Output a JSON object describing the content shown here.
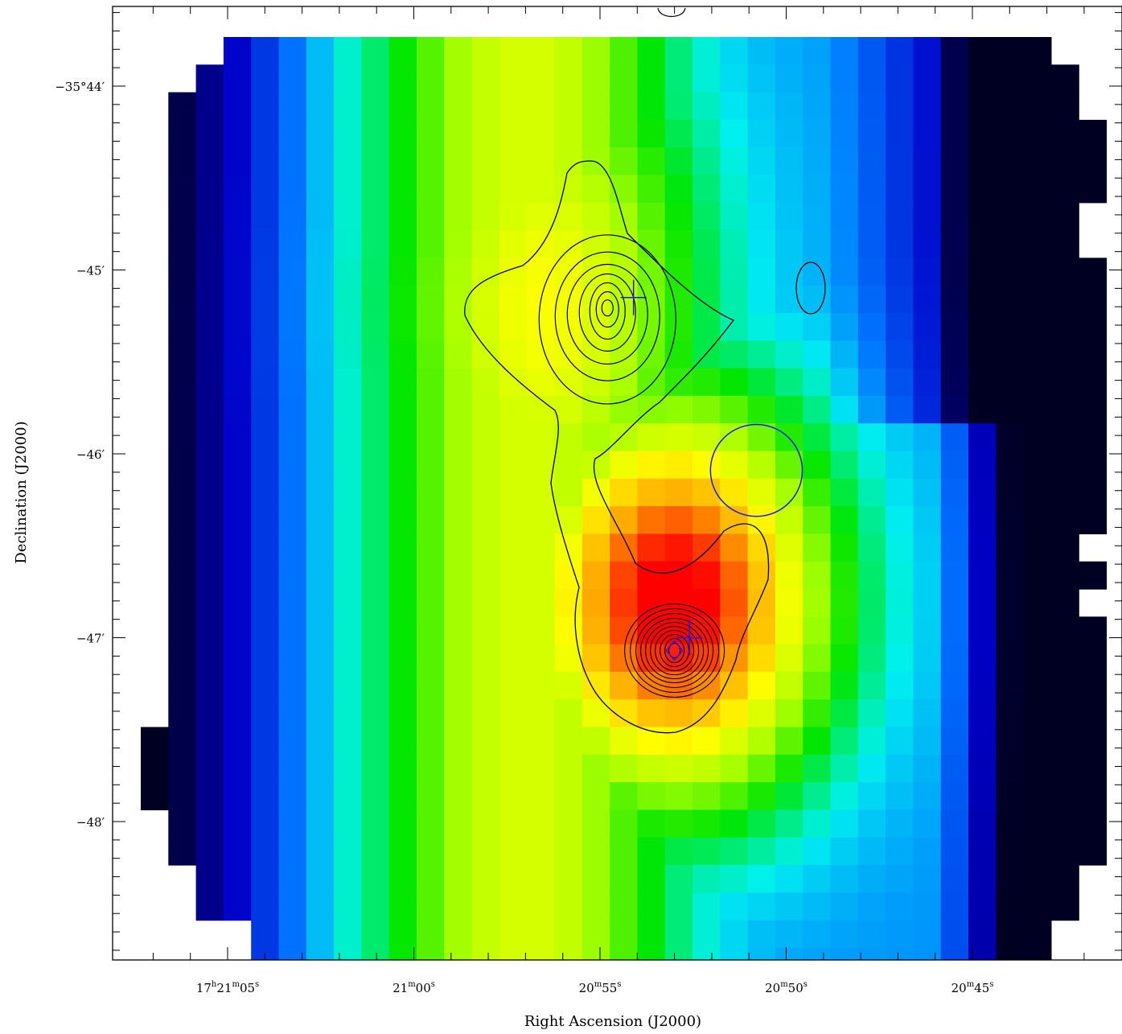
{
  "chart_data": {
    "type": "heatmap",
    "title": "",
    "xlabel": "Right Ascension (J2000)",
    "ylabel": "Declination (J2000)",
    "x_axis": {
      "units": "RA seconds of time (17h20m + s)",
      "range": [
        68.0,
        41.0
      ],
      "direction": "decreasing to the right",
      "ticks": [
        {
          "value": 65,
          "h": "17",
          "m": "21",
          "s": "05",
          "sup_h": "h",
          "sup_m": "m",
          "sup_s": "s"
        },
        {
          "value": 60,
          "h": "",
          "m": "21",
          "s": "00",
          "sup_h": "",
          "sup_m": "m",
          "sup_s": "s"
        },
        {
          "value": 55,
          "h": "",
          "m": "20",
          "s": "55",
          "sup_h": "",
          "sup_m": "m",
          "sup_s": "s"
        },
        {
          "value": 50,
          "h": "",
          "m": "20",
          "s": "50",
          "sup_h": "",
          "sup_m": "m",
          "sup_s": "s"
        },
        {
          "value": 45,
          "h": "",
          "m": "20",
          "s": "45",
          "sup_h": "",
          "sup_m": "m",
          "sup_s": "s"
        }
      ]
    },
    "y_axis": {
      "units": "arcminutes (Dec = -35°+ value)",
      "range": [
        -48.8,
        -43.6
      ],
      "ticks": [
        {
          "value": -44,
          "label": "−35°44′"
        },
        {
          "value": -45,
          "label": "−45′"
        },
        {
          "value": -46,
          "label": "−46′"
        },
        {
          "value": -47,
          "label": "−47′"
        },
        {
          "value": -48,
          "label": "−48′"
        }
      ]
    },
    "colormap": [
      "#000022",
      "#0000c8",
      "#0073ff",
      "#00f0f0",
      "#00e600",
      "#a6ff00",
      "#ffff00",
      "#ffa500",
      "#ff0000"
    ],
    "field_value_description": "colour-coded map: blue at left, green/yellow column around 21m00s–20m55s, red peak region at 20m53s,-46.6', dark navy to the right",
    "contours": {
      "source_a_center": [
        54.8,
        -45.2
      ],
      "source_b_center": [
        53.0,
        -47.07
      ]
    },
    "markers": {
      "crosses": [
        [
          54.1,
          -45.15
        ],
        [
          52.6,
          -47.0
        ]
      ],
      "diamond": [
        53.0,
        -47.07
      ],
      "circle": {
        "center": [
          50.8,
          -46.09
        ],
        "radius_arcmin": 0.25
      }
    }
  }
}
